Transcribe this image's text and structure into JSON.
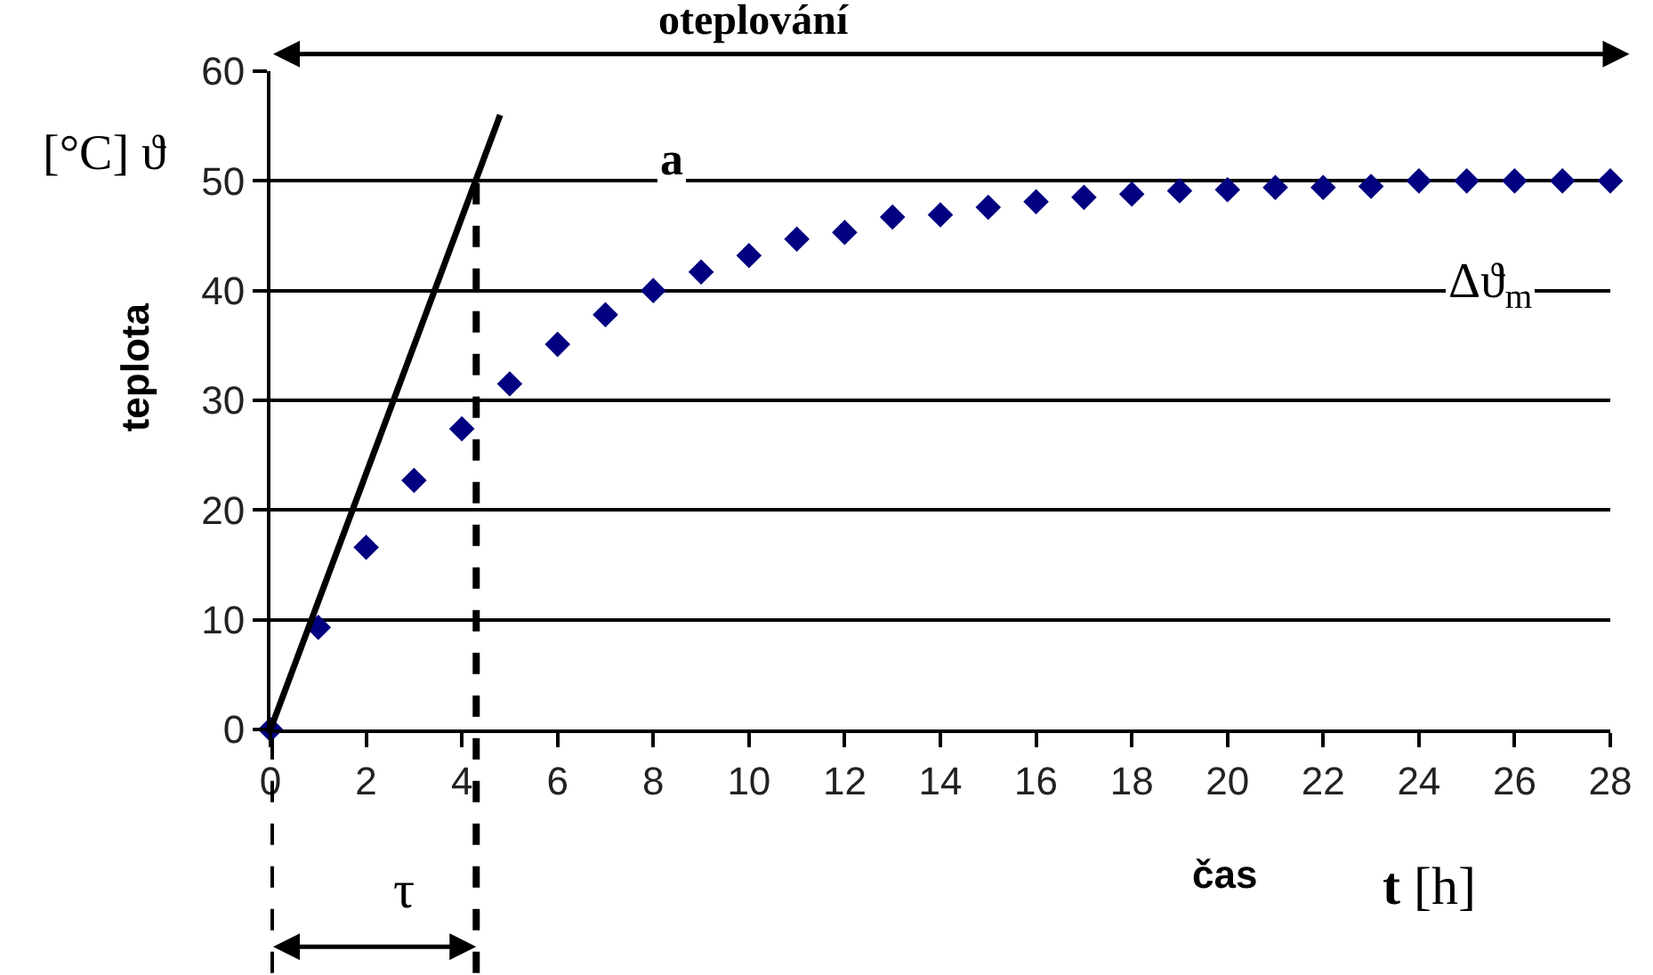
{
  "chart_data": {
    "type": "scatter",
    "ylabel": "teplota",
    "xlabel": "čas",
    "annotations": [
      "oteplování",
      "[°C] ϑ",
      "a",
      "Δϑ$_{m}$",
      "τ",
      "t [h]"
    ],
    "xlim": [
      0,
      28
    ],
    "xticks": [
      0,
      2,
      4,
      6,
      8,
      10,
      12,
      14,
      16,
      18,
      20,
      22,
      24,
      26,
      28
    ],
    "ylim": [
      0,
      60
    ],
    "yticks": [
      0,
      10,
      20,
      30,
      40,
      50,
      60
    ],
    "grid": "y",
    "marker": "diamond",
    "ref_lines": [
      {
        "axis": "x",
        "value": 4.3,
        "line_style": "dashed",
        "color": "#000000"
      }
    ],
    "series": [
      {
        "color": "#000080",
        "x": [
          0,
          1,
          2,
          3,
          4,
          5,
          6,
          7,
          8,
          9,
          10,
          11,
          12,
          13,
          14,
          15,
          16,
          17,
          18,
          19,
          20,
          21,
          22,
          23,
          24,
          25,
          26,
          27,
          28
        ],
        "values": [
          0,
          9.3,
          16.6,
          22.7,
          27.4,
          31.5,
          35.1,
          37.8,
          40.0,
          41.7,
          43.2,
          44.7,
          45.3,
          46.7,
          46.9,
          47.6,
          48.1,
          48.5,
          48.8,
          49.1,
          49.2,
          49.4,
          49.4,
          49.5,
          50.0,
          50.0,
          50.0,
          50.0,
          50.0
        ]
      },
      {
        "type": "line",
        "marker": "none",
        "color": "#000000",
        "x": [
          0,
          4.8
        ],
        "values": [
          0,
          56
        ]
      }
    ]
  }
}
